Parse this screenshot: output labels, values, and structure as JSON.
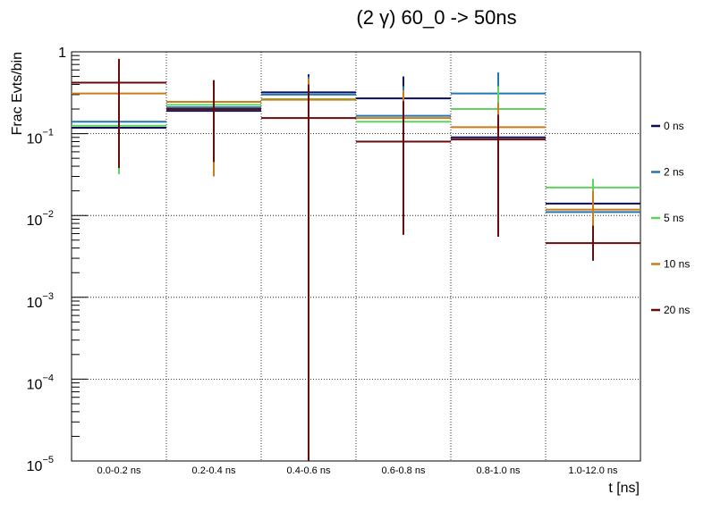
{
  "chart_data": {
    "type": "step",
    "title": "(2 γ) 60_0 -> 50ns",
    "xlabel": "t [ns]",
    "ylabel": "Frac Evts/bin",
    "yscale": "log",
    "ylim": [
      1e-05,
      1
    ],
    "grid": true,
    "legend_position": "right",
    "y_ticks": [
      {
        "base": "10",
        "exp": "−5"
      },
      {
        "base": "10",
        "exp": "−4"
      },
      {
        "base": "10",
        "exp": "−3"
      },
      {
        "base": "10",
        "exp": "−2"
      },
      {
        "base": "10",
        "exp": "−1"
      },
      {
        "base": "1",
        "exp": ""
      }
    ],
    "categories": [
      "0.0-0.2 ns",
      "0.2-0.4 ns",
      "0.4-0.6 ns",
      "0.6-0.8 ns",
      "0.8-1.0 ns",
      "1.0-12.0 ns"
    ],
    "series": [
      {
        "name": "0 ns",
        "color": "#0b0b5c",
        "values": [
          0.118,
          0.19,
          0.32,
          0.27,
          0.09,
          0.014
        ],
        "err_low": [
          0.033,
          0.045,
          1e-05,
          0.05,
          0.006,
          0.006
        ],
        "err_high": [
          0.2,
          0.3,
          0.53,
          0.5,
          0.17,
          0.02
        ]
      },
      {
        "name": "2 ns",
        "color": "#1f78b4",
        "values": [
          0.14,
          0.21,
          0.3,
          0.165,
          0.31,
          0.011
        ],
        "err_low": [
          0.035,
          0.045,
          1e-05,
          0.05,
          0.07,
          0.005
        ],
        "err_high": [
          0.22,
          0.32,
          0.5,
          0.38,
          0.56,
          0.018
        ]
      },
      {
        "name": "5 ns",
        "color": "#5fd35f",
        "values": [
          0.125,
          0.225,
          0.265,
          0.14,
          0.2,
          0.022
        ],
        "err_low": [
          0.032,
          0.045,
          1e-05,
          0.03,
          0.03,
          0.012
        ],
        "err_high": [
          0.21,
          0.33,
          0.45,
          0.3,
          0.38,
          0.028
        ]
      },
      {
        "name": "10 ns",
        "color": "#cc7a1a",
        "values": [
          0.31,
          0.245,
          0.26,
          0.155,
          0.12,
          0.0118
        ],
        "err_low": [
          0.04,
          0.03,
          1e-05,
          0.03,
          0.02,
          0.005
        ],
        "err_high": [
          0.6,
          0.45,
          0.47,
          0.34,
          0.24,
          0.02
        ]
      },
      {
        "name": "20 ns",
        "color": "#6b0a0a",
        "values": [
          0.42,
          0.2,
          0.155,
          0.08,
          0.085,
          0.0046
        ],
        "err_low": [
          0.038,
          0.045,
          1e-05,
          0.0058,
          0.0055,
          0.0028
        ],
        "err_high": [
          0.82,
          0.45,
          0.4,
          0.25,
          0.17,
          0.0075
        ]
      }
    ]
  }
}
